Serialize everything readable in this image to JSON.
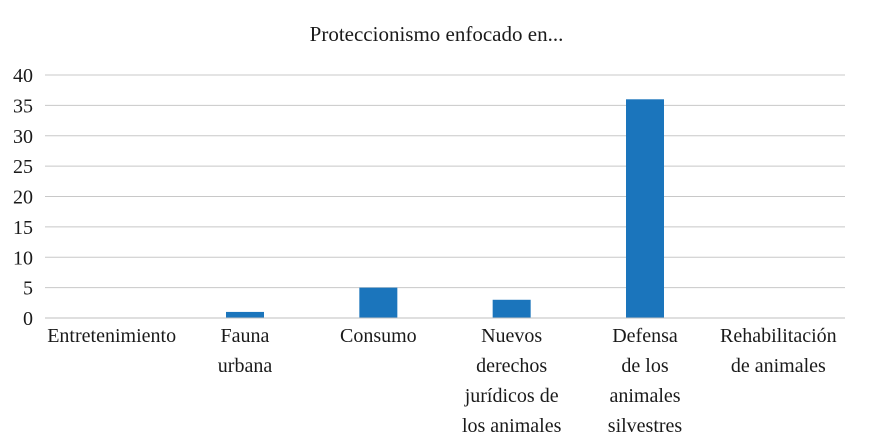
{
  "chart_data": {
    "type": "bar",
    "title": "Proteccionismo enfocado en...",
    "categories": [
      [
        "Entretenimiento"
      ],
      [
        "Fauna",
        "urbana"
      ],
      [
        "Consumo"
      ],
      [
        "Nuevos",
        "derechos",
        "jurídicos de",
        "los animales"
      ],
      [
        "Defensa",
        "de los",
        "animales",
        "silvestres"
      ],
      [
        "Rehabilitación",
        "de animales"
      ]
    ],
    "values": [
      0,
      1,
      5,
      3,
      36,
      0
    ],
    "ylim": [
      0,
      40
    ],
    "yticks": [
      0,
      5,
      10,
      15,
      20,
      25,
      30,
      35,
      40
    ],
    "grid": true,
    "bar_color": "#1b75bc",
    "grid_color": "#c8c8c8",
    "xlabel": "",
    "ylabel": ""
  }
}
